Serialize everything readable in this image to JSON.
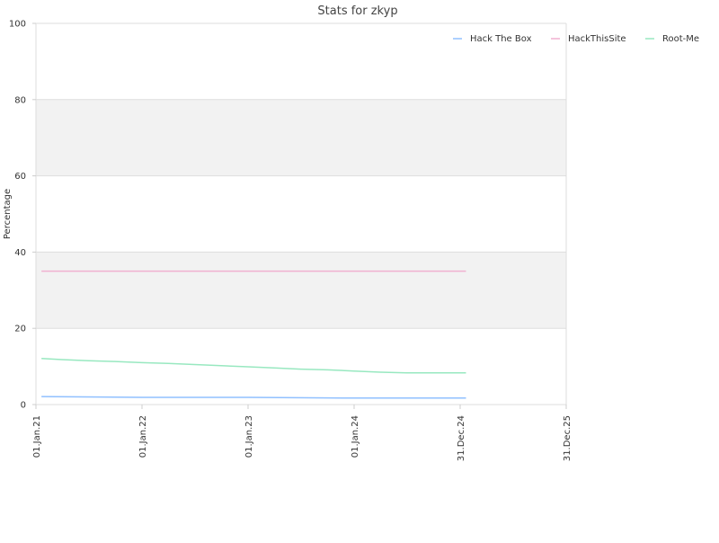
{
  "chart_data": {
    "type": "line",
    "title": "Stats for zkyp",
    "xlabel": "",
    "ylabel": "Percentage",
    "ylim": [
      0,
      100
    ],
    "yticks": [
      0,
      20,
      40,
      60,
      80,
      100
    ],
    "xlim": [
      "2021-01-01",
      "2025-12-31"
    ],
    "xticks": [
      {
        "date": "2021-01-01",
        "label": "01.Jan.21"
      },
      {
        "date": "2022-01-01",
        "label": "01.Jan.22"
      },
      {
        "date": "2023-01-01",
        "label": "01.Jan.23"
      },
      {
        "date": "2024-01-01",
        "label": "01.Jan.24"
      },
      {
        "date": "2024-12-31",
        "label": "31.Dec.24"
      },
      {
        "date": "2025-12-31",
        "label": "31.Dec.25"
      }
    ],
    "bands": [
      [
        20,
        40
      ],
      [
        60,
        80
      ]
    ],
    "band_color": "#f2f2f2",
    "grid_color": "#dddddd",
    "legend_position": "top-right",
    "series": [
      {
        "name": "Hack The Box",
        "color": "#90c0ff",
        "points": [
          [
            "2021-01-20",
            2.1
          ],
          [
            "2022-01-01",
            1.9
          ],
          [
            "2023-01-01",
            1.9
          ],
          [
            "2023-12-31",
            1.7
          ],
          [
            "2024-12-31",
            1.7
          ],
          [
            "2025-01-20",
            1.7
          ]
        ]
      },
      {
        "name": "HackThisSite",
        "color": "#f0b0d0",
        "points": [
          [
            "2021-01-20",
            35
          ],
          [
            "2025-01-20",
            35
          ]
        ]
      },
      {
        "name": "Root-Me",
        "color": "#98e8c0",
        "points": [
          [
            "2021-01-20",
            12.1
          ],
          [
            "2021-04-01",
            11.8
          ],
          [
            "2021-07-01",
            11.5
          ],
          [
            "2021-10-01",
            11.3
          ],
          [
            "2022-01-01",
            11.0
          ],
          [
            "2022-04-01",
            10.8
          ],
          [
            "2022-07-01",
            10.5
          ],
          [
            "2022-10-01",
            10.2
          ],
          [
            "2023-01-01",
            9.9
          ],
          [
            "2023-04-01",
            9.6
          ],
          [
            "2023-07-01",
            9.3
          ],
          [
            "2023-10-01",
            9.1
          ],
          [
            "2024-01-01",
            8.8
          ],
          [
            "2024-04-01",
            8.5
          ],
          [
            "2024-07-01",
            8.3
          ],
          [
            "2024-10-01",
            8.3
          ],
          [
            "2025-01-20",
            8.3
          ]
        ]
      }
    ]
  }
}
